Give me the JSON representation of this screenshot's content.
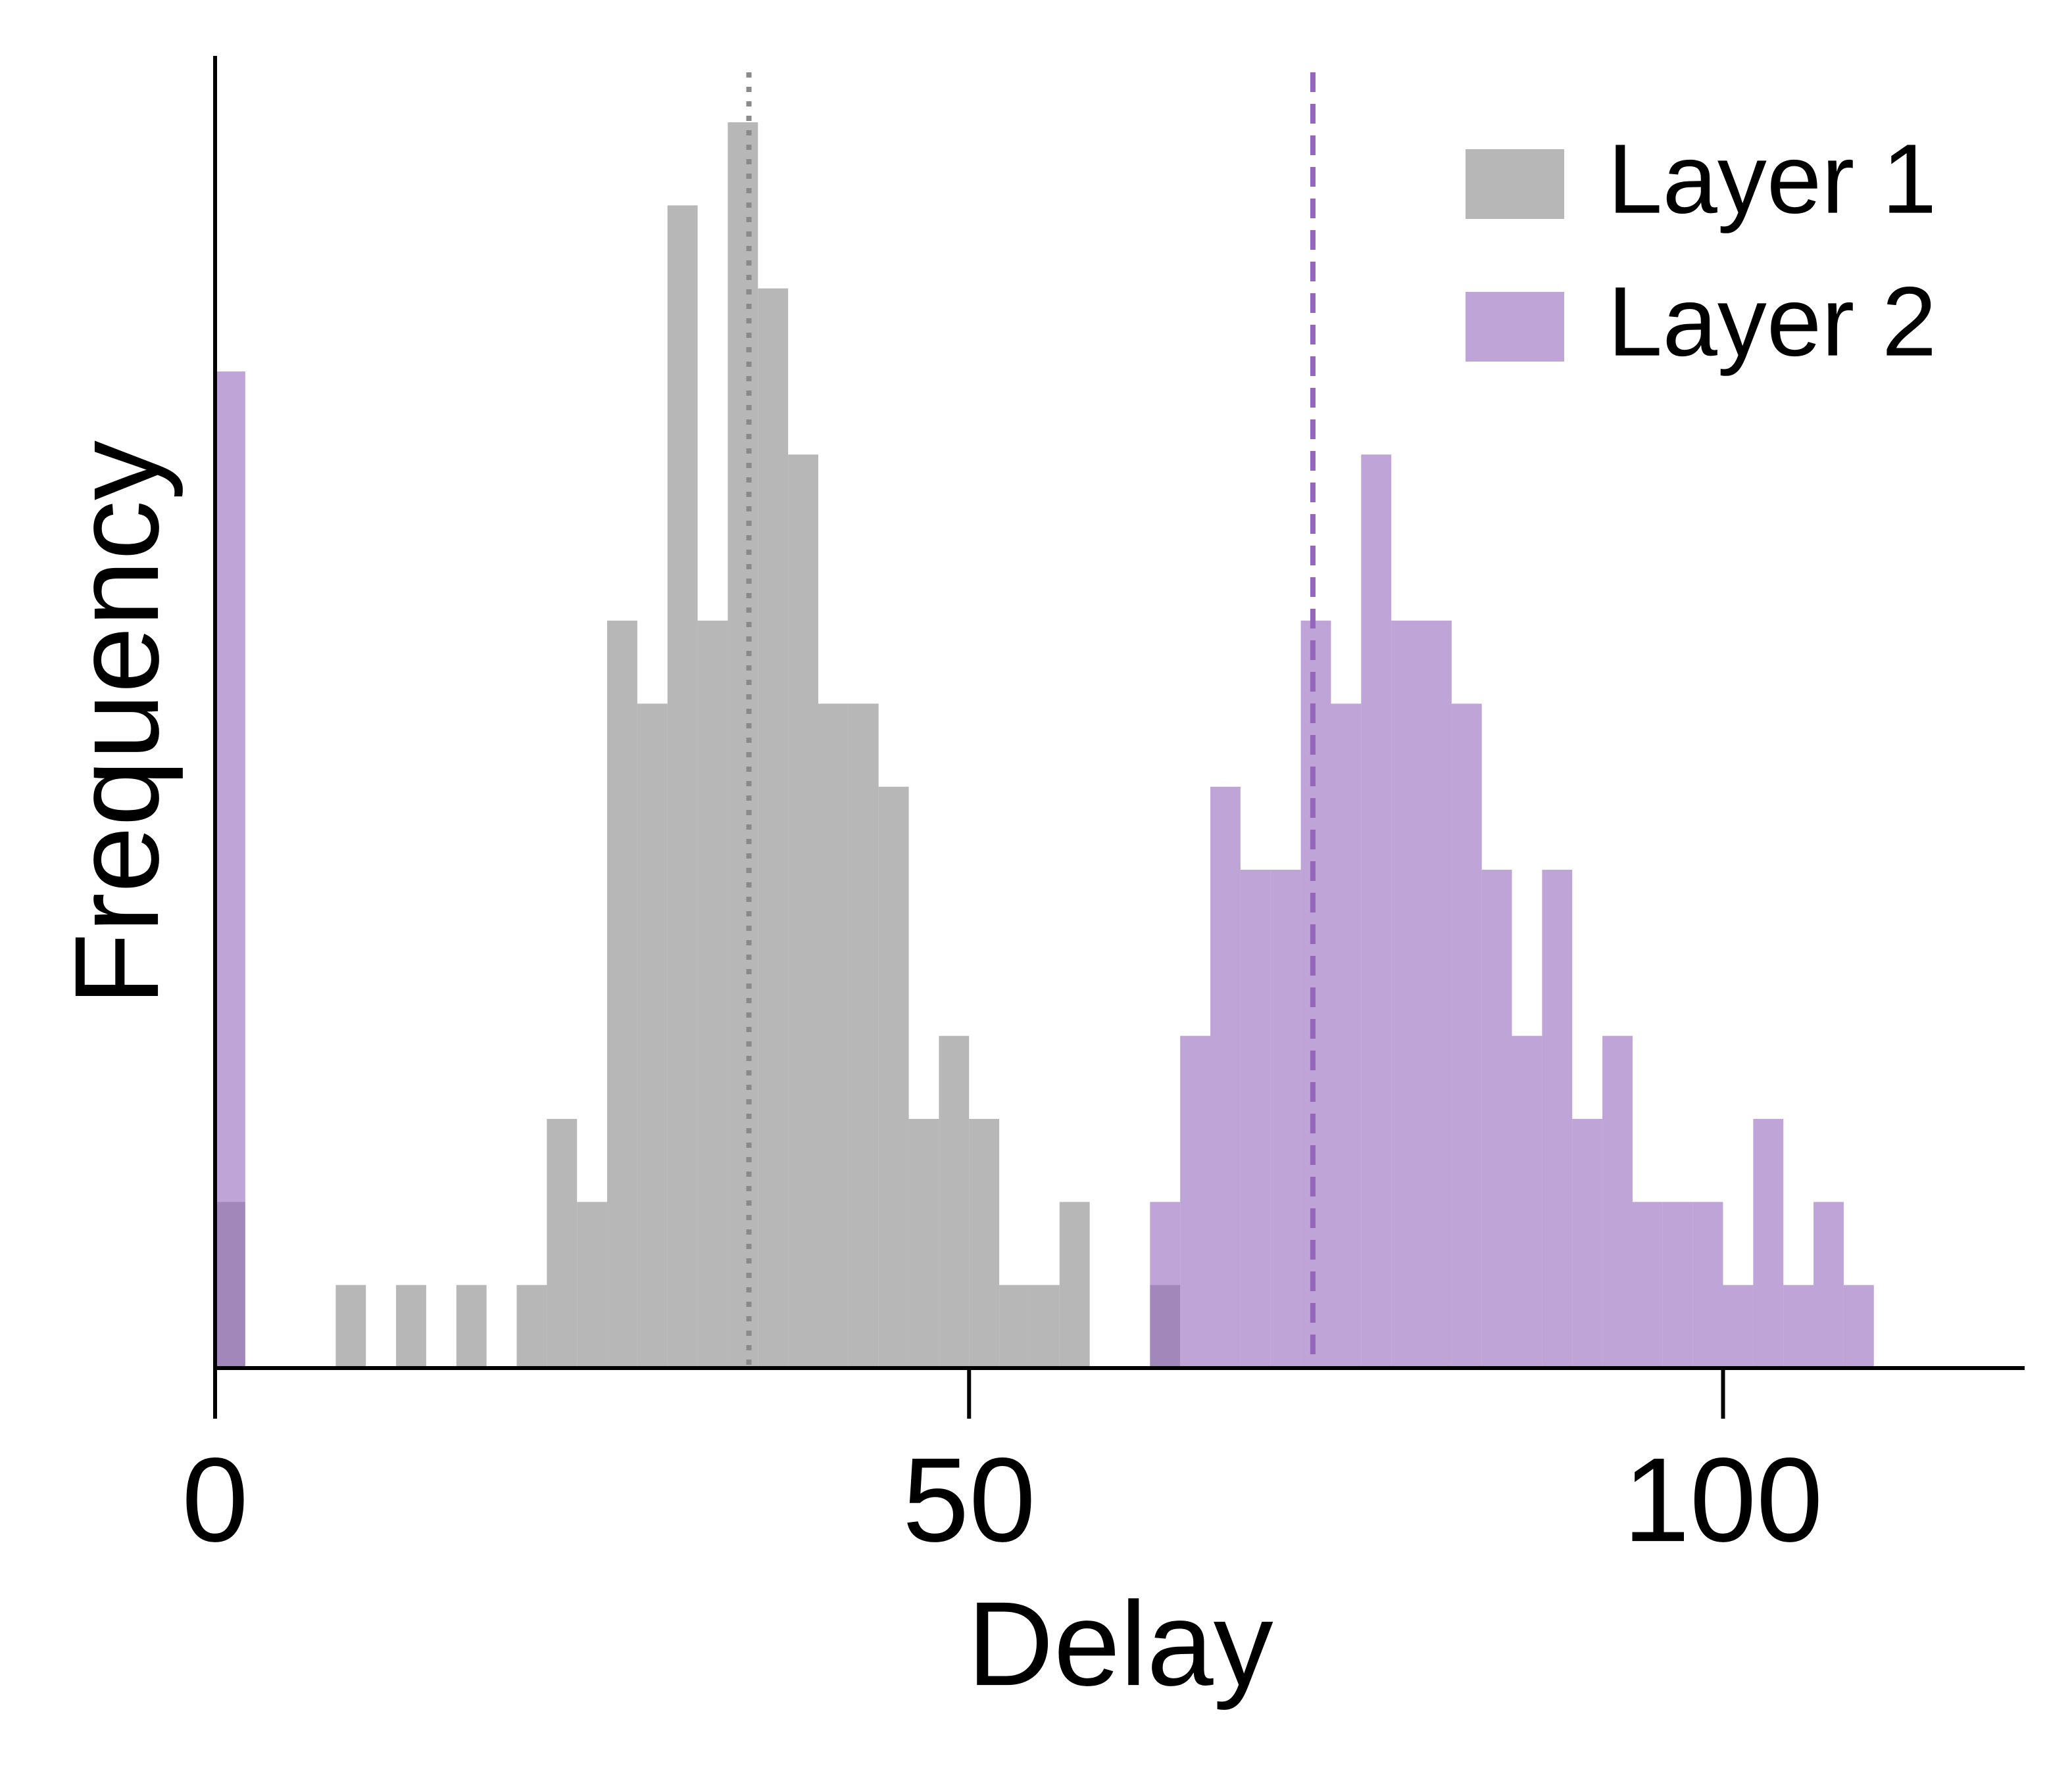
{
  "chart_data": {
    "type": "histogram",
    "x_label": "Delay",
    "y_label": "Frequency",
    "bins": [
      0,
      2,
      4,
      6,
      8,
      10,
      12,
      14,
      16,
      18,
      20,
      22,
      24,
      26,
      28,
      30,
      32,
      34,
      36,
      38,
      40,
      42,
      44,
      46,
      48,
      50,
      52,
      54,
      56,
      58,
      60,
      62,
      64,
      66,
      68,
      70,
      72,
      74,
      76,
      78,
      80,
      82,
      84,
      86,
      88,
      90,
      92,
      94,
      96,
      98,
      100,
      102,
      104,
      106,
      108,
      110
    ],
    "series": [
      {
        "name": "Layer 1",
        "color": "#878787",
        "opacity": 0.6,
        "mean": 35.4,
        "mean_style": "dotted",
        "mean_color": "#8a8a8a",
        "values": [
          2,
          0,
          0,
          0,
          1,
          0,
          1,
          0,
          1,
          0,
          1,
          3,
          2,
          9,
          8,
          14,
          9,
          15,
          13,
          11,
          8,
          8,
          7,
          3,
          4,
          3,
          1,
          1,
          2,
          0,
          0,
          1,
          0,
          0,
          0,
          0,
          0,
          0,
          0,
          0,
          0,
          0,
          0,
          0,
          0,
          0,
          0,
          0,
          0,
          0,
          0,
          0,
          0,
          0,
          0
        ]
      },
      {
        "name": "Layer 2",
        "color": "#9467bd",
        "opacity": 0.6,
        "mean": 72.8,
        "mean_style": "dashed",
        "mean_color": "#9467bd",
        "values": [
          12,
          0,
          0,
          0,
          0,
          0,
          0,
          0,
          0,
          0,
          0,
          0,
          0,
          0,
          0,
          0,
          0,
          0,
          0,
          0,
          0,
          0,
          0,
          0,
          0,
          0,
          0,
          0,
          0,
          0,
          0,
          2,
          4,
          7,
          6,
          6,
          9,
          8,
          11,
          9,
          9,
          8,
          6,
          4,
          6,
          3,
          4,
          2,
          2,
          2,
          1,
          3,
          1,
          2,
          1
        ]
      }
    ],
    "xlim": [
      0,
      120
    ],
    "ylim": [
      0,
      15.8
    ],
    "xticks": [
      0,
      50,
      100
    ],
    "legend": "upper right"
  }
}
